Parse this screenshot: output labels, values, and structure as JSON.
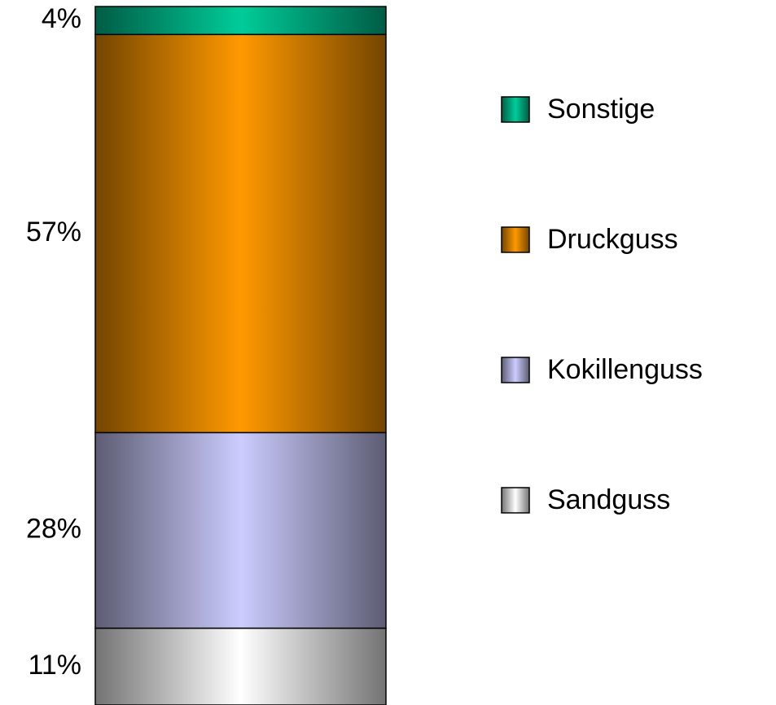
{
  "chart_data": {
    "type": "bar",
    "stacked": true,
    "ylim": [
      0,
      100
    ],
    "series": [
      {
        "name": "Sandguss",
        "color": "#ffffff",
        "values": [
          11
        ],
        "value_labels": [
          "11%"
        ]
      },
      {
        "name": "Kokillenguss",
        "color": "#ccccff",
        "values": [
          28
        ],
        "value_labels": [
          "28%"
        ]
      },
      {
        "name": "Druckguss",
        "color": "#ff9900",
        "values": [
          57
        ],
        "value_labels": [
          "57%"
        ]
      },
      {
        "name": "Sonstige",
        "color": "#00cc99",
        "values": [
          4
        ],
        "value_labels": [
          "4%"
        ]
      }
    ],
    "legend": "right"
  }
}
